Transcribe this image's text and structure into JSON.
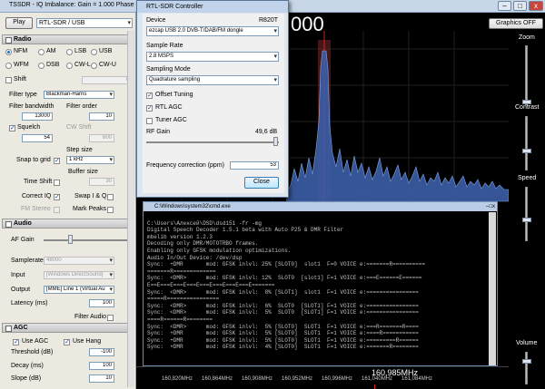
{
  "app": {
    "title": "TSSDR - IQ Imbalance: Gain = 1.000 Phase = 0",
    "big_freq_suffix": "000"
  },
  "sidebar": {
    "play_label": "Play",
    "device_value": "RTL-SDR / USB",
    "radio": {
      "header": "Radio",
      "modes": [
        "NFM",
        "AM",
        "LSB",
        "USB",
        "WFM",
        "DSB",
        "CW-L",
        "CW-U"
      ],
      "selected_mode": "NFM",
      "shift_label": "Shift",
      "shift_value": "0",
      "filter_type_label": "Filter type",
      "filter_type_value": "Blackman-Harris",
      "filter_bandwidth_label": "Filter bandwidth",
      "filter_bandwidth_value": "13000",
      "filter_order_label": "Filter order",
      "filter_order_value": "10",
      "squelch_label": "Squelch",
      "squelch_value": "54",
      "cw_shift_label": "CW Shift",
      "cw_shift_value": "600",
      "snap_label": "Snap to grid",
      "step_size_label": "Step size",
      "step_size_value": "1 kHz",
      "buffer_size_label": "Buffer size",
      "time_shift_label": "Time Shift",
      "buffer_size_value": "30",
      "correct_iq_label": "Correct IQ",
      "swap_iq_label": "Swap I & Q",
      "fm_stereo_label": "FM Stereo",
      "mark_peaks_label": "Mark Peaks"
    },
    "audio": {
      "header": "Audio",
      "af_gain_label": "AF Gain",
      "af_gain_level": 0.3,
      "samplerate_label": "Samplerate",
      "samplerate_value": "48000",
      "input_label": "Input",
      "input_value": "[Windows DirectSound]",
      "output_label": "Output",
      "output_value": "[MME] Line 1 (Virtual Au",
      "latency_label": "Latency (ms)",
      "latency_value": "100",
      "filter_audio_label": "Filter Audio"
    },
    "agc": {
      "header": "AGC",
      "use_agc_label": "Use AGC",
      "use_hang_label": "Use Hang",
      "threshold_label": "Threshold (dB)",
      "threshold_value": "-100",
      "decay_label": "Decay (ms)",
      "decay_value": "100",
      "slope_label": "Slope (dB)",
      "slope_value": "10"
    }
  },
  "rtl": {
    "title": "RTL-SDR Controller",
    "device_label": "Device",
    "tuner": "R820T",
    "device_value": "ezcap USB 2.0 DVB-T/DAB/FM dongle",
    "sample_rate_label": "Sample Rate",
    "sample_rate_value": "2.8 MSPS",
    "sampling_mode_label": "Sampling Mode",
    "sampling_mode_value": "Quadrature sampling",
    "offset_tuning_label": "Offset Tuning",
    "rtl_agc_label": "RTL AGC",
    "tuner_agc_label": "Tuner AGC",
    "rf_gain_label": "RF Gain",
    "rf_gain_value": "49,6 dB",
    "rf_gain_level": 1.0,
    "freq_corr_label": "Frequency correction (ppm)",
    "freq_corr_value": "53",
    "close_label": "Close"
  },
  "right": {
    "graphics_label": "Graphics OFF",
    "zoom_label": "Zoom",
    "contrast_label": "Contrast",
    "speed_label": "Speed",
    "volume_label": "Volume"
  },
  "cmd": {
    "title": "C:\\Windows\\system32\\cmd.exe",
    "lines": [
      "",
      "C:\\Users\\Алексей\\DSD\\dsd151 -fr -mg",
      "Digital Speech Decoder 1.5.1 beta with Auto P25 & DMR Filter",
      "mbelib version 1.2.3",
      "Decoding only DMR/MOTOTRBO frames.",
      "Enabling only GFSK modulation optimizations.",
      "Audio In/Out Device: /dev/dsp",
      "Sync:  +DMR       mod: GFSK inlvl: 25% [SLOT0]  slot1  F=0 VOICE e:=======R==========",
      "=======R=============",
      "Sync:  <DMR>      mod: GFSK inlvl: 12%  SLOT0  [slot1] F=1 VOICE e:===E======E======",
      "E==E===E===E===E===E===E===E===E=======",
      "Sync:  <DMR>      mod: GFSK inlvl:  8% [SLOT1]  slot1  F=1 VOICE e:================",
      "=====R================",
      "Sync:  <DMR>      mod: GFSK inlvl:  6%  SLOT0  [SLOT1] F=1 VOICE e:================",
      "Sync:  <DMR>      mod: GFSK inlvl:  5%  SLOT0  [SLOT1] F=1 VOICE e:================",
      "====R======R========",
      "Sync:  <DMR>      mod: GFSK inlvl:  5% [SLOT0]  SLOT1  F=1 VOICE e:===R=======R====",
      "Sync:  +DMR       mod: GFSK inlvl:  5% [SLOT0]  SLOT1  F=1 VOICE e:====R===========",
      "Sync:  +DMR       mod: GFSK inlvl:  5% [SLOT0]  SLOT1  F=1 VOICE e:=========R======",
      "Sync:  +DMR       mod: GFSK inlvl:  4% [SLOT0]  SLOT1  F=1 VOICE e:=======R========"
    ]
  },
  "spectrum": {
    "ticks": [
      "160,820MHz",
      "160,864MHz",
      "160,908MHz",
      "160,952MHz",
      "160,996MHz",
      "161,040MHz",
      "161,084MHz"
    ],
    "center_freq": "160,985MHz"
  }
}
